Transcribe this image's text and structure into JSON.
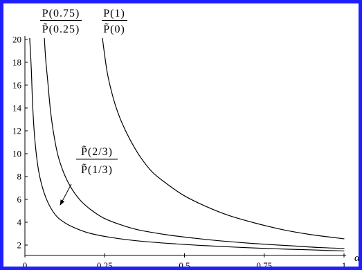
{
  "figure": {
    "border_color": "#1e1eff",
    "line_color": "#000000"
  },
  "chart_data": {
    "type": "line",
    "xlabel": "α",
    "xlim": [
      0,
      1
    ],
    "ylim": [
      1.1,
      20.3
    ],
    "grid": false,
    "x_tick_labels": [
      "0",
      "0.25",
      "0.5",
      "0.75",
      "1"
    ],
    "y_tick_labels": [
      "2",
      "4",
      "6",
      "8",
      "10",
      "12",
      "14",
      "16",
      "18",
      "20"
    ],
    "series": [
      {
        "label": {
          "numerator": "P(0.75)",
          "denominator": "P̃(0.25)"
        },
        "color": "#000000",
        "x": [
          0.061,
          0.065,
          0.072,
          0.08,
          0.091,
          0.104,
          0.122,
          0.143,
          0.171,
          0.204,
          0.247,
          0.302,
          0.356,
          0.443,
          0.529,
          0.616,
          0.725,
          0.833,
          0.92,
          1.0
        ],
        "y": [
          20.1,
          18.3,
          16.2,
          13.8,
          11.6,
          9.8,
          8.3,
          7.1,
          6.0,
          5.15,
          4.36,
          3.76,
          3.33,
          2.91,
          2.61,
          2.36,
          2.12,
          1.94,
          1.79,
          1.7
        ]
      },
      {
        "label": {
          "numerator": "P(1)",
          "denominator": "P̃(0)"
        },
        "color": "#000000",
        "x": [
          0.243,
          0.25,
          0.258,
          0.269,
          0.284,
          0.304,
          0.33,
          0.362,
          0.399,
          0.443,
          0.497,
          0.562,
          0.638,
          0.725,
          0.811,
          0.898,
          1.0
        ],
        "y": [
          20.1,
          18.6,
          17.1,
          15.7,
          14.2,
          12.7,
          11.2,
          9.7,
          8.4,
          7.4,
          6.36,
          5.45,
          4.6,
          3.9,
          3.33,
          2.91,
          2.55
        ]
      },
      {
        "label": {
          "numerator": "P̃(2/3)",
          "denominator": "P̃(1/3)"
        },
        "color": "#000000",
        "x": [
          0.015,
          0.02,
          0.024,
          0.03,
          0.039,
          0.048,
          0.061,
          0.078,
          0.1,
          0.128,
          0.161,
          0.204,
          0.269,
          0.356,
          0.464,
          0.573,
          0.681,
          0.79,
          0.898,
          1.0
        ],
        "y": [
          20.1,
          17.4,
          14.4,
          11.6,
          9.2,
          7.8,
          6.5,
          5.4,
          4.5,
          3.9,
          3.45,
          3.03,
          2.67,
          2.36,
          2.12,
          1.94,
          1.79,
          1.67,
          1.58,
          1.48
        ]
      }
    ]
  }
}
